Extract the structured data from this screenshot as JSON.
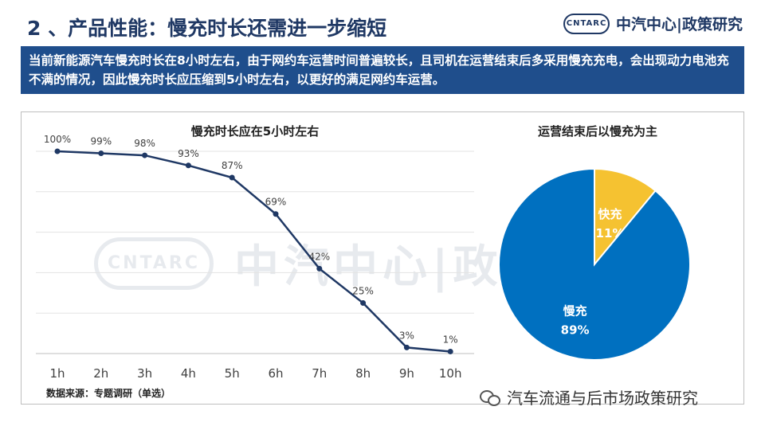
{
  "slide": {
    "title": "2 、产品性能：慢充时长还需进一步缩短",
    "brand_logo": "CNTARC",
    "brand_name": "中汽中心|政策研究",
    "banner_text": "当前新能源汽车慢充时长在8小时左右，由于网约车运营时间普遍较长，且司机在运营结束后多采用慢充充电，会出现动力电池充不满的情况，因此慢充时长应压缩到5小时左右，以更好的满足网约车运营。",
    "source_note": "数据来源：专题调研（单选）",
    "footer_text": "汽车流通与后市场政策研究",
    "watermark_logo": "CNTARC",
    "watermark_text": "中汽中心|政策研究"
  },
  "colors": {
    "navy": "#1f3864",
    "banner": "#1f4e8c",
    "slow": "#0070c0",
    "fast": "#f5c231"
  },
  "chart_data": [
    {
      "type": "line",
      "title": "慢充时长应在5小时左右",
      "categories": [
        "1h",
        "2h",
        "3h",
        "4h",
        "5h",
        "6h",
        "7h",
        "8h",
        "9h",
        "10h"
      ],
      "values": [
        100,
        99,
        98,
        93,
        87,
        69,
        42,
        25,
        3,
        1
      ],
      "labels": [
        "100%",
        "99%",
        "98%",
        "93%",
        "87%",
        "69%",
        "42%",
        "25%",
        "3%",
        "1%"
      ],
      "ylim": [
        0,
        100
      ],
      "grid": true,
      "xlabel": "",
      "ylabel": ""
    },
    {
      "type": "pie",
      "title": "运营结束后以慢充为主",
      "slices": [
        {
          "name": "快充",
          "value": 11,
          "label": "11%"
        },
        {
          "name": "慢充",
          "value": 89,
          "label": "89%"
        }
      ]
    }
  ]
}
